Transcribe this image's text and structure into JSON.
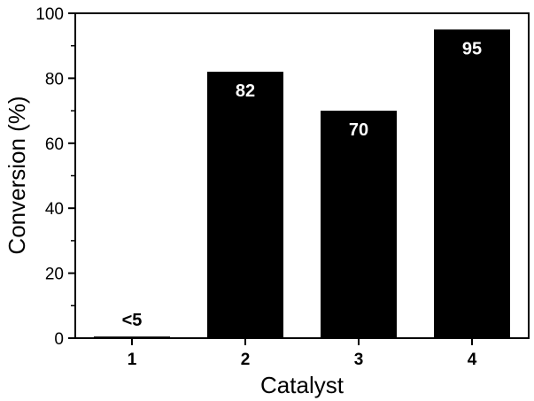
{
  "chart_data": {
    "type": "bar",
    "categories": [
      "1",
      "2",
      "3",
      "4"
    ],
    "values": [
      0.5,
      82,
      70,
      95
    ],
    "data_labels": [
      "<5",
      "82",
      "70",
      "95"
    ],
    "xlabel": "Catalyst",
    "ylabel": "Conversion (%)",
    "ylim": [
      0,
      100
    ],
    "yticks": [
      "0",
      "20",
      "40",
      "60",
      "80",
      "100"
    ],
    "grid": false,
    "bar_color": "#000000",
    "label_inside_color": "#ffffff",
    "label_outside_color": "#000000"
  }
}
